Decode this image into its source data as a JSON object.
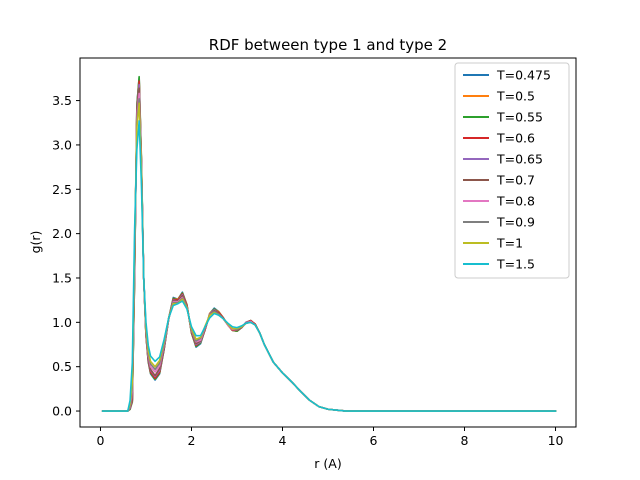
{
  "chart_data": {
    "type": "line",
    "title": "RDF between type 1 and type 2",
    "xlabel": "r (A)",
    "ylabel": "g(r)",
    "xlim": [
      -0.45,
      10.45
    ],
    "ylim": [
      -0.18,
      3.98
    ],
    "xticks": [
      0,
      2,
      4,
      6,
      8,
      10
    ],
    "yticks": [
      0.0,
      0.5,
      1.0,
      1.5,
      2.0,
      2.5,
      3.0,
      3.5
    ],
    "xtick_labels": [
      "0",
      "2",
      "4",
      "6",
      "8",
      "10"
    ],
    "ytick_labels": [
      "0.0",
      "0.5",
      "1.0",
      "1.5",
      "2.0",
      "2.5",
      "3.0",
      "3.5"
    ],
    "grid": false,
    "legend_position": "top-right",
    "x": [
      0.05,
      0.3,
      0.6,
      0.65,
      0.7,
      0.75,
      0.8,
      0.85,
      0.9,
      0.95,
      1.0,
      1.05,
      1.1,
      1.2,
      1.3,
      1.4,
      1.5,
      1.6,
      1.7,
      1.8,
      1.9,
      2.0,
      2.1,
      2.2,
      2.3,
      2.4,
      2.5,
      2.6,
      2.7,
      2.8,
      2.9,
      3.0,
      3.1,
      3.2,
      3.3,
      3.4,
      3.5,
      3.6,
      3.8,
      4.0,
      4.2,
      4.4,
      4.6,
      4.8,
      5.0,
      5.2,
      5.4,
      5.6,
      6.0,
      7.0,
      8.0,
      9.0,
      10.0
    ],
    "series": [
      {
        "name": "T=0.475",
        "color": "#1f77b4",
        "values": [
          0,
          0,
          0,
          0.02,
          0.1,
          1.5,
          3.45,
          3.76,
          2.8,
          1.5,
          0.85,
          0.55,
          0.42,
          0.35,
          0.42,
          0.7,
          1.05,
          1.28,
          1.26,
          1.34,
          1.2,
          0.88,
          0.72,
          0.76,
          0.92,
          1.1,
          1.16,
          1.12,
          1.05,
          0.97,
          0.91,
          0.9,
          0.94,
          1.0,
          1.02,
          0.98,
          0.88,
          0.75,
          0.55,
          0.43,
          0.33,
          0.22,
          0.12,
          0.05,
          0.02,
          0.01,
          0,
          0,
          0,
          0,
          0,
          0,
          0
        ]
      },
      {
        "name": "T=0.5",
        "color": "#ff7f0e",
        "values": [
          0,
          0,
          0,
          0.02,
          0.11,
          1.5,
          3.44,
          3.74,
          2.8,
          1.5,
          0.85,
          0.56,
          0.43,
          0.36,
          0.43,
          0.71,
          1.05,
          1.27,
          1.26,
          1.33,
          1.2,
          0.88,
          0.73,
          0.77,
          0.92,
          1.1,
          1.15,
          1.12,
          1.05,
          0.97,
          0.91,
          0.9,
          0.94,
          1.0,
          1.02,
          0.98,
          0.88,
          0.75,
          0.55,
          0.43,
          0.33,
          0.22,
          0.12,
          0.05,
          0.02,
          0.01,
          0,
          0,
          0,
          0,
          0,
          0,
          0
        ]
      },
      {
        "name": "T=0.55",
        "color": "#2ca02c",
        "values": [
          0,
          0,
          0,
          0.02,
          0.12,
          1.55,
          3.45,
          3.77,
          2.85,
          1.52,
          0.86,
          0.56,
          0.43,
          0.36,
          0.43,
          0.7,
          1.04,
          1.27,
          1.25,
          1.33,
          1.19,
          0.88,
          0.73,
          0.77,
          0.92,
          1.09,
          1.15,
          1.11,
          1.05,
          0.97,
          0.91,
          0.9,
          0.94,
          1.0,
          1.02,
          0.98,
          0.88,
          0.75,
          0.55,
          0.43,
          0.33,
          0.22,
          0.12,
          0.05,
          0.02,
          0.01,
          0,
          0,
          0,
          0,
          0,
          0,
          0
        ]
      },
      {
        "name": "T=0.6",
        "color": "#d62728",
        "values": [
          0,
          0,
          0,
          0.03,
          0.13,
          1.55,
          3.4,
          3.72,
          2.82,
          1.5,
          0.86,
          0.57,
          0.44,
          0.37,
          0.44,
          0.71,
          1.04,
          1.26,
          1.25,
          1.32,
          1.19,
          0.89,
          0.74,
          0.78,
          0.92,
          1.09,
          1.14,
          1.11,
          1.05,
          0.97,
          0.91,
          0.91,
          0.94,
          1.0,
          1.02,
          0.98,
          0.88,
          0.75,
          0.55,
          0.43,
          0.33,
          0.22,
          0.12,
          0.05,
          0.02,
          0.01,
          0,
          0,
          0,
          0,
          0,
          0,
          0
        ]
      },
      {
        "name": "T=0.65",
        "color": "#9467bd",
        "values": [
          0,
          0,
          0,
          0.03,
          0.15,
          1.6,
          3.38,
          3.68,
          2.8,
          1.5,
          0.87,
          0.58,
          0.46,
          0.39,
          0.46,
          0.72,
          1.04,
          1.25,
          1.24,
          1.31,
          1.18,
          0.9,
          0.75,
          0.78,
          0.93,
          1.09,
          1.14,
          1.1,
          1.04,
          0.97,
          0.92,
          0.91,
          0.94,
          1.0,
          1.01,
          0.97,
          0.88,
          0.75,
          0.55,
          0.43,
          0.33,
          0.22,
          0.12,
          0.05,
          0.02,
          0.01,
          0,
          0,
          0,
          0,
          0,
          0,
          0
        ]
      },
      {
        "name": "T=0.7",
        "color": "#8c564b",
        "values": [
          0,
          0,
          0,
          0.04,
          0.17,
          1.62,
          3.35,
          3.64,
          2.78,
          1.5,
          0.88,
          0.6,
          0.47,
          0.4,
          0.48,
          0.73,
          1.04,
          1.24,
          1.24,
          1.3,
          1.18,
          0.9,
          0.76,
          0.79,
          0.93,
          1.08,
          1.13,
          1.1,
          1.04,
          0.97,
          0.92,
          0.91,
          0.94,
          0.99,
          1.01,
          0.97,
          0.88,
          0.75,
          0.55,
          0.43,
          0.33,
          0.22,
          0.12,
          0.05,
          0.02,
          0.01,
          0,
          0,
          0,
          0,
          0,
          0,
          0
        ]
      },
      {
        "name": "T=0.8",
        "color": "#e377c2",
        "values": [
          0,
          0,
          0,
          0.05,
          0.22,
          1.7,
          3.3,
          3.58,
          2.75,
          1.5,
          0.9,
          0.63,
          0.5,
          0.44,
          0.51,
          0.75,
          1.04,
          1.23,
          1.23,
          1.28,
          1.17,
          0.91,
          0.78,
          0.8,
          0.94,
          1.08,
          1.12,
          1.09,
          1.04,
          0.97,
          0.92,
          0.92,
          0.95,
          0.99,
          1.01,
          0.97,
          0.88,
          0.75,
          0.55,
          0.43,
          0.33,
          0.22,
          0.12,
          0.05,
          0.02,
          0.01,
          0,
          0,
          0,
          0,
          0,
          0,
          0
        ]
      },
      {
        "name": "T=0.9",
        "color": "#7f7f7f",
        "values": [
          0,
          0,
          0,
          0.06,
          0.27,
          1.8,
          3.25,
          3.52,
          2.72,
          1.5,
          0.92,
          0.65,
          0.53,
          0.47,
          0.54,
          0.77,
          1.05,
          1.22,
          1.22,
          1.27,
          1.17,
          0.92,
          0.79,
          0.82,
          0.95,
          1.08,
          1.12,
          1.09,
          1.04,
          0.98,
          0.93,
          0.92,
          0.95,
          0.99,
          1.0,
          0.97,
          0.88,
          0.75,
          0.55,
          0.43,
          0.33,
          0.22,
          0.12,
          0.05,
          0.02,
          0.01,
          0,
          0,
          0,
          0,
          0,
          0,
          0
        ]
      },
      {
        "name": "T=1",
        "color": "#bcbd22",
        "values": [
          0,
          0,
          0,
          0.08,
          0.33,
          1.9,
          3.2,
          3.47,
          2.7,
          1.5,
          0.94,
          0.68,
          0.56,
          0.5,
          0.57,
          0.79,
          1.05,
          1.21,
          1.21,
          1.26,
          1.16,
          0.93,
          0.81,
          0.83,
          0.96,
          1.08,
          1.11,
          1.08,
          1.04,
          0.98,
          0.93,
          0.93,
          0.95,
          0.99,
          1.0,
          0.97,
          0.88,
          0.75,
          0.55,
          0.43,
          0.33,
          0.22,
          0.12,
          0.05,
          0.02,
          0.01,
          0,
          0,
          0,
          0,
          0,
          0,
          0
        ]
      },
      {
        "name": "T=1.5",
        "color": "#17becf",
        "values": [
          0,
          0,
          0,
          0.12,
          0.55,
          2.05,
          2.95,
          3.27,
          2.55,
          1.5,
          1.0,
          0.74,
          0.62,
          0.56,
          0.61,
          0.81,
          1.05,
          1.19,
          1.21,
          1.24,
          1.15,
          0.95,
          0.85,
          0.85,
          0.95,
          1.05,
          1.1,
          1.08,
          1.04,
          0.99,
          0.95,
          0.94,
          0.96,
          0.99,
          1.0,
          0.97,
          0.88,
          0.75,
          0.55,
          0.43,
          0.33,
          0.22,
          0.12,
          0.05,
          0.02,
          0.01,
          0,
          0,
          0,
          0,
          0,
          0,
          0
        ]
      }
    ]
  }
}
